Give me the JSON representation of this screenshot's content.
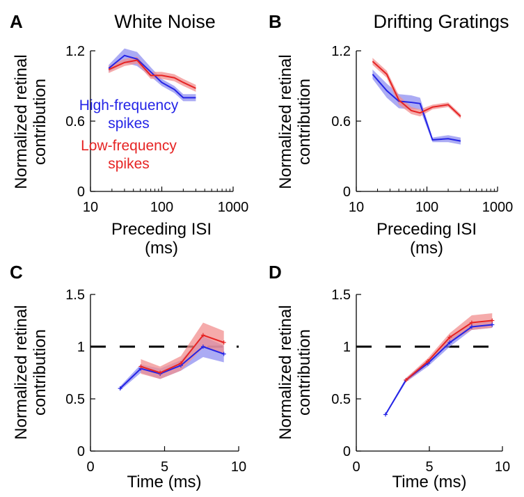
{
  "colors": {
    "high": "#2424e6",
    "low": "#e62424",
    "high_band": "#8f8ff0",
    "low_band": "#f28f8f"
  },
  "chart_data": [
    {
      "id": "A",
      "type": "line",
      "panel_letter": "A",
      "title": "White Noise",
      "ylabel": [
        "Normalized retinal",
        "contribution"
      ],
      "xlabel": [
        "Preceding ISI",
        "(ms)"
      ],
      "xscale": "log",
      "xlim": [
        10,
        1000
      ],
      "ylim": [
        0,
        1.2
      ],
      "xticks": [
        10,
        100,
        1000
      ],
      "xtick_labels": [
        "10",
        "100",
        "1000"
      ],
      "yticks": [
        0,
        0.6,
        1.2
      ],
      "ytick_labels": [
        "0",
        "0.6",
        "1.2"
      ],
      "legend": [
        {
          "lines": [
            "High-frequency",
            "spikes"
          ],
          "color": "#2424e6"
        },
        {
          "lines": [
            "Low-frequency",
            "spikes"
          ],
          "color": "#e62424"
        }
      ],
      "series": [
        {
          "color_key": "high",
          "x": [
            18,
            30,
            45,
            70,
            100,
            150,
            200,
            300
          ],
          "y": [
            1.05,
            1.16,
            1.13,
            1.02,
            0.93,
            0.87,
            0.8,
            0.8
          ],
          "err": [
            0.03,
            0.06,
            0.06,
            0.04,
            0.03,
            0.03,
            0.03,
            0.03
          ]
        },
        {
          "color_key": "low",
          "x": [
            18,
            30,
            45,
            70,
            100,
            150,
            200,
            300
          ],
          "y": [
            1.04,
            1.1,
            1.12,
            0.99,
            0.99,
            0.97,
            0.93,
            0.88
          ],
          "err": [
            0.03,
            0.03,
            0.03,
            0.03,
            0.03,
            0.03,
            0.03,
            0.03
          ]
        }
      ]
    },
    {
      "id": "B",
      "type": "line",
      "panel_letter": "B",
      "title": "Drifting Gratings",
      "ylabel": [
        "Normalized retinal",
        "contribution"
      ],
      "xlabel": [
        "Preceding ISI",
        "(ms)"
      ],
      "xscale": "log",
      "xlim": [
        10,
        1000
      ],
      "ylim": [
        0,
        1.2
      ],
      "xticks": [
        10,
        100,
        1000
      ],
      "xtick_labels": [
        "10",
        "100",
        "1000"
      ],
      "yticks": [
        0,
        0.6,
        1.2
      ],
      "ytick_labels": [
        "0",
        "0.6",
        "1.2"
      ],
      "series": [
        {
          "color_key": "high",
          "x": [
            17,
            27,
            40,
            60,
            80,
            120,
            200,
            300
          ],
          "y": [
            1.0,
            0.86,
            0.77,
            0.76,
            0.75,
            0.44,
            0.45,
            0.43
          ],
          "err": [
            0.04,
            0.06,
            0.06,
            0.06,
            0.05,
            0.02,
            0.03,
            0.03
          ]
        },
        {
          "color_key": "low",
          "x": [
            17,
            27,
            40,
            60,
            80,
            120,
            200,
            300
          ],
          "y": [
            1.11,
            1.0,
            0.78,
            0.69,
            0.67,
            0.72,
            0.74,
            0.64
          ],
          "err": [
            0.03,
            0.03,
            0.04,
            0.03,
            0.03,
            0.02,
            0.02,
            0.02
          ]
        }
      ]
    },
    {
      "id": "C",
      "type": "line",
      "panel_letter": "C",
      "title": "",
      "ylabel": [
        "Normalized retinal",
        "contribution"
      ],
      "xlabel": [
        "Time (ms)"
      ],
      "xscale": "linear",
      "xlim": [
        0,
        10
      ],
      "ylim": [
        0,
        1.5
      ],
      "xticks": [
        0,
        5,
        10
      ],
      "xtick_labels": [
        "0",
        "5",
        "10"
      ],
      "yticks": [
        0,
        0.5,
        1,
        1.5
      ],
      "ytick_labels": [
        "0",
        "0.5",
        "1",
        "1.5"
      ],
      "reference_line": 1,
      "series": [
        {
          "color_key": "high",
          "x": [
            2.0,
            3.4,
            4.7,
            6.1,
            7.6,
            9.0
          ],
          "y": [
            0.6,
            0.79,
            0.74,
            0.82,
            1.0,
            0.93
          ],
          "err": [
            0.02,
            0.04,
            0.05,
            0.05,
            0.1,
            0.08
          ]
        },
        {
          "color_key": "low",
          "x": [
            3.4,
            4.7,
            6.1,
            7.6,
            9.0
          ],
          "y": [
            0.81,
            0.75,
            0.84,
            1.11,
            1.04
          ],
          "err": [
            0.07,
            0.06,
            0.07,
            0.12,
            0.11
          ]
        }
      ]
    },
    {
      "id": "D",
      "type": "line",
      "panel_letter": "D",
      "title": "",
      "ylabel": [
        "Normalized retinal",
        "contribution"
      ],
      "xlabel": [
        "Time (ms)"
      ],
      "xscale": "linear",
      "xlim": [
        0,
        10
      ],
      "ylim": [
        0,
        1.5
      ],
      "xticks": [
        0,
        5,
        10
      ],
      "xtick_labels": [
        "0",
        "5",
        "10"
      ],
      "yticks": [
        0,
        0.5,
        1,
        1.5
      ],
      "ytick_labels": [
        "0",
        "0.5",
        "1",
        "1.5"
      ],
      "reference_line": 1,
      "series": [
        {
          "color_key": "high",
          "x": [
            2.0,
            3.4,
            4.9,
            6.4,
            7.9,
            9.3
          ],
          "y": [
            0.35,
            0.68,
            0.84,
            1.04,
            1.19,
            1.21
          ],
          "err": [
            0.01,
            0.02,
            0.03,
            0.04,
            0.03,
            0.03
          ]
        },
        {
          "color_key": "low",
          "x": [
            3.4,
            4.9,
            6.4,
            7.9,
            9.3
          ],
          "y": [
            0.68,
            0.86,
            1.09,
            1.23,
            1.25
          ],
          "err": [
            0.02,
            0.03,
            0.04,
            0.07,
            0.07
          ]
        }
      ]
    }
  ]
}
